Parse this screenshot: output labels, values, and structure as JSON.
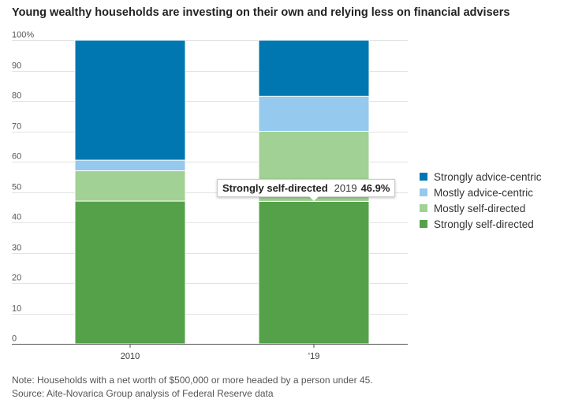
{
  "title": "Young wealthy households are investing on their own and relying less on financial advisers",
  "chart_data": {
    "type": "bar",
    "stacked": true,
    "categories": [
      "2010",
      "’19"
    ],
    "series": [
      {
        "name": "Strongly self-directed",
        "color": "#55a14a",
        "values": [
          47.0,
          46.9
        ]
      },
      {
        "name": "Mostly self-directed",
        "color": "#a1d194",
        "values": [
          10.0,
          23.1
        ]
      },
      {
        "name": "Mostly advice-centric",
        "color": "#96c9ee",
        "values": [
          3.5,
          11.5
        ]
      },
      {
        "name": "Strongly advice-centric",
        "color": "#0077b0",
        "values": [
          39.5,
          18.5
        ]
      }
    ],
    "yticks": [
      "0",
      "10",
      "20",
      "30",
      "40",
      "50",
      "60",
      "70",
      "80",
      "90",
      "100%"
    ],
    "ylim": [
      0,
      100
    ],
    "grid": true,
    "legend_position": "right",
    "legend_order": [
      "Strongly advice-centric",
      "Mostly advice-centric",
      "Mostly self-directed",
      "Strongly self-directed"
    ]
  },
  "tooltip": {
    "series": "Strongly self-directed",
    "year": "2019",
    "value": "46.9%"
  },
  "notes": {
    "note": "Note: Households with a net worth of $500,000 or more headed by a person under 45.",
    "source": "Source: Aite-Novarica Group analysis of Federal Reserve data"
  }
}
